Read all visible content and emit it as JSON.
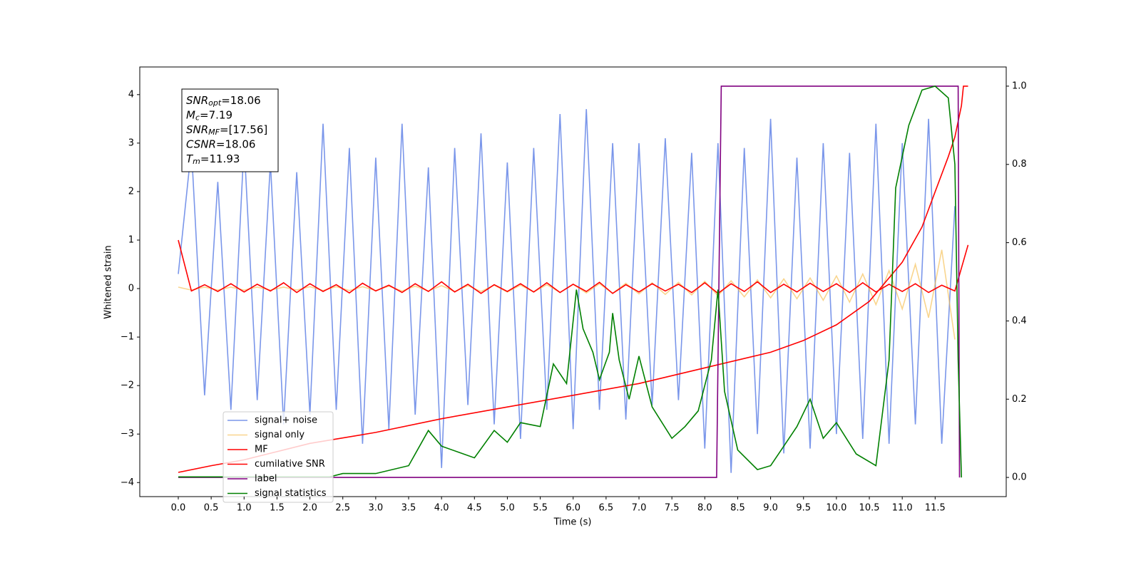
{
  "chart_data": {
    "type": "line",
    "xlabel": "Time (s)",
    "ylabel": "Whitened strain",
    "xlim": [
      -0.585,
      12.58
    ],
    "ylim": [
      -4.29,
      4.57
    ],
    "y2lim": [
      -0.049,
      1.049
    ],
    "xticks": [
      {
        "value": 0,
        "label": "0.0"
      },
      {
        "value": 0.5,
        "label": "0.5"
      },
      {
        "value": 1,
        "label": "1.0"
      },
      {
        "value": 1.5,
        "label": "1.5"
      },
      {
        "value": 2,
        "label": "2.0"
      },
      {
        "value": 2.5,
        "label": "2.5"
      },
      {
        "value": 3,
        "label": "3.0"
      },
      {
        "value": 3.5,
        "label": "3.5"
      },
      {
        "value": 4,
        "label": "4.0"
      },
      {
        "value": 4.5,
        "label": "4.5"
      },
      {
        "value": 5,
        "label": "5.0"
      },
      {
        "value": 5.5,
        "label": "5.5"
      },
      {
        "value": 6,
        "label": "6.0"
      },
      {
        "value": 6.5,
        "label": "6.5"
      },
      {
        "value": 7,
        "label": "7.0"
      },
      {
        "value": 7.5,
        "label": "7.5"
      },
      {
        "value": 8,
        "label": "8.0"
      },
      {
        "value": 8.5,
        "label": "8.5"
      },
      {
        "value": 9,
        "label": "9.0"
      },
      {
        "value": 9.5,
        "label": "9.5"
      },
      {
        "value": 10,
        "label": "10.0"
      },
      {
        "value": 10.5,
        "label": "10.5"
      },
      {
        "value": 11,
        "label": "11.0"
      },
      {
        "value": 11.5,
        "label": "11.5"
      }
    ],
    "yticks": [
      {
        "value": -4,
        "label": "−4"
      },
      {
        "value": -3,
        "label": "−3"
      },
      {
        "value": -2,
        "label": "−2"
      },
      {
        "value": -1,
        "label": "−1"
      },
      0,
      1,
      2,
      3,
      4
    ],
    "y2ticks": [
      {
        "value": 0,
        "label": "0.0"
      },
      {
        "value": 0.2,
        "label": "0.2"
      },
      {
        "value": 0.4,
        "label": "0.4"
      },
      {
        "value": 0.6,
        "label": "0.6"
      },
      {
        "value": 0.8,
        "label": "0.8"
      },
      {
        "value": 1,
        "label": "1.0"
      }
    ],
    "legend": "lower left",
    "annotation": [
      {
        "main": "SNR",
        "sub": "opt",
        "rest": "=18.06"
      },
      {
        "main": "M",
        "sub": "c",
        "rest": "=7.19"
      },
      {
        "main": "SNR",
        "sub": "MF",
        "rest": "=[17.56]"
      },
      {
        "main": "CSNR",
        "rest": "=18.06"
      },
      {
        "main": "T",
        "sub": "m",
        "rest": "=11.93"
      }
    ],
    "series": [
      {
        "name": "signal+ noise",
        "color": "#4169e1",
        "opacity": 0.7,
        "x": [
          0,
          0.2,
          0.4,
          0.6,
          0.8,
          1,
          1.2,
          1.4,
          1.6,
          1.8,
          2,
          2.2,
          2.4,
          2.6,
          2.8,
          3,
          3.2,
          3.4,
          3.6,
          3.8,
          4,
          4.2,
          4.4,
          4.6,
          4.8,
          5,
          5.2,
          5.4,
          5.6,
          5.8,
          6,
          6.2,
          6.4,
          6.6,
          6.8,
          7,
          7.2,
          7.4,
          7.6,
          7.8,
          8,
          8.2,
          8.4,
          8.6,
          8.8,
          9,
          9.2,
          9.4,
          9.6,
          9.8,
          10,
          10.2,
          10.4,
          10.6,
          10.8,
          11,
          11.2,
          11.4,
          11.6,
          11.8
        ],
        "values": [
          0.3,
          2.9,
          -2.2,
          2.2,
          -2.5,
          3.0,
          -2.3,
          2.6,
          -2.8,
          2.4,
          -2.6,
          3.4,
          -2.5,
          2.9,
          -3.2,
          2.7,
          -2.9,
          3.4,
          -2.6,
          2.5,
          -3.7,
          2.9,
          -2.4,
          3.2,
          -2.8,
          2.6,
          -3.1,
          2.9,
          -2.5,
          3.6,
          -2.9,
          3.7,
          -2.5,
          3.0,
          -2.7,
          3.0,
          -2.4,
          3.1,
          -2.3,
          2.8,
          -3.3,
          3.0,
          -3.8,
          2.9,
          -3.0,
          3.5,
          -3.4,
          2.7,
          -3.3,
          3.0,
          -3.0,
          2.8,
          -3.1,
          3.4,
          -3.2,
          3.0,
          -2.8,
          3.5,
          -3.2,
          1.7
        ]
      },
      {
        "name": "signal only",
        "color": "#f5b942",
        "opacity": 0.6,
        "x": [
          0,
          0.2,
          0.4,
          0.6,
          0.8,
          1,
          1.2,
          1.4,
          1.6,
          1.8,
          2,
          2.2,
          2.4,
          2.6,
          2.8,
          3,
          3.2,
          3.4,
          3.6,
          3.8,
          4,
          4.2,
          4.4,
          4.6,
          4.8,
          5,
          5.2,
          5.4,
          5.6,
          5.8,
          6,
          6.2,
          6.4,
          6.6,
          6.8,
          7,
          7.2,
          7.4,
          7.6,
          7.8,
          8,
          8.2,
          8.4,
          8.6,
          8.8,
          9,
          9.2,
          9.4,
          9.6,
          9.8,
          10,
          10.2,
          10.4,
          10.6,
          10.8,
          11,
          11.2,
          11.4,
          11.6,
          11.8
        ],
        "values": [
          0.03,
          -0.03,
          0.03,
          -0.03,
          0.03,
          -0.03,
          0.03,
          -0.03,
          0.03,
          -0.03,
          0.04,
          -0.04,
          0.04,
          -0.04,
          0.04,
          -0.04,
          0.05,
          -0.05,
          0.05,
          -0.05,
          0.06,
          -0.06,
          0.06,
          -0.06,
          0.07,
          -0.07,
          0.07,
          -0.07,
          0.08,
          -0.08,
          0.09,
          -0.09,
          0.1,
          -0.1,
          0.11,
          -0.11,
          0.12,
          -0.12,
          0.13,
          -0.13,
          0.15,
          -0.15,
          0.16,
          -0.17,
          0.18,
          -0.19,
          0.2,
          -0.21,
          0.22,
          -0.24,
          0.26,
          -0.28,
          0.3,
          -0.33,
          0.37,
          -0.42,
          0.5,
          -0.6,
          0.8,
          -1.05
        ]
      },
      {
        "name": "MF",
        "color": "#ff0000",
        "opacity": 1,
        "x": [
          0,
          0.2,
          0.4,
          0.6,
          0.8,
          1,
          1.2,
          1.4,
          1.6,
          1.8,
          2,
          2.2,
          2.4,
          2.6,
          2.8,
          3,
          3.2,
          3.4,
          3.6,
          3.8,
          4,
          4.2,
          4.4,
          4.6,
          4.8,
          5,
          5.2,
          5.4,
          5.6,
          5.8,
          6,
          6.2,
          6.4,
          6.6,
          6.8,
          7,
          7.2,
          7.4,
          7.6,
          7.8,
          8,
          8.2,
          8.4,
          8.6,
          8.8,
          9,
          9.2,
          9.4,
          9.6,
          9.8,
          10,
          10.2,
          10.4,
          10.6,
          10.8,
          11,
          11.2,
          11.4,
          11.6,
          11.8,
          12
        ],
        "values": [
          1.0,
          -0.05,
          0.08,
          -0.06,
          0.1,
          -0.07,
          0.09,
          -0.05,
          0.12,
          -0.08,
          0.1,
          -0.06,
          0.08,
          -0.09,
          0.11,
          -0.05,
          0.07,
          -0.08,
          0.1,
          -0.06,
          0.14,
          -0.07,
          0.09,
          -0.1,
          0.08,
          -0.06,
          0.1,
          -0.07,
          0.12,
          -0.08,
          0.09,
          -0.06,
          0.13,
          -0.1,
          0.08,
          -0.07,
          0.1,
          -0.05,
          0.09,
          -0.08,
          0.12,
          -0.1,
          0.1,
          -0.06,
          0.14,
          -0.08,
          0.09,
          -0.07,
          0.11,
          -0.06,
          0.1,
          -0.08,
          0.12,
          -0.07,
          0.09,
          -0.06,
          0.1,
          -0.08,
          0.07,
          -0.05,
          0.9
        ]
      },
      {
        "name": "cumilative SNR",
        "color": "#ff0000",
        "opacity": 1,
        "axis": "y2",
        "x": [
          0,
          0.5,
          1,
          2,
          3,
          4,
          5,
          6,
          7,
          8,
          8.5,
          9,
          9.5,
          10,
          10.5,
          11,
          11.3,
          11.5,
          11.7,
          11.8,
          11.9,
          11.93,
          12
        ],
        "values": [
          0.013,
          0.03,
          0.045,
          0.087,
          0.115,
          0.15,
          0.18,
          0.21,
          0.24,
          0.28,
          0.3,
          0.32,
          0.35,
          0.39,
          0.45,
          0.55,
          0.64,
          0.73,
          0.82,
          0.87,
          0.95,
          1.0,
          1.0
        ]
      },
      {
        "name": "label",
        "color": "#800080",
        "opacity": 1,
        "axis": "y2",
        "x": [
          0,
          8.18,
          8.25,
          11.85,
          11.87
        ],
        "values": [
          0,
          0,
          1,
          1,
          0
        ]
      },
      {
        "name": "signal statistics",
        "color": "#008000",
        "opacity": 1,
        "axis": "y2",
        "x": [
          0,
          2.3,
          2.5,
          3.0,
          3.5,
          3.8,
          4.0,
          4.5,
          4.8,
          5.0,
          5.2,
          5.5,
          5.7,
          5.9,
          6.05,
          6.15,
          6.3,
          6.4,
          6.55,
          6.6,
          6.7,
          6.85,
          7.0,
          7.2,
          7.5,
          7.7,
          7.9,
          8.1,
          8.2,
          8.3,
          8.5,
          8.8,
          9.0,
          9.2,
          9.4,
          9.6,
          9.8,
          10.0,
          10.3,
          10.6,
          10.8,
          10.9,
          11.1,
          11.3,
          11.5,
          11.7,
          11.8,
          11.85,
          11.9
        ],
        "values": [
          0.0015,
          0.0015,
          0.01,
          0.01,
          0.03,
          0.12,
          0.08,
          0.05,
          0.12,
          0.09,
          0.14,
          0.13,
          0.29,
          0.24,
          0.48,
          0.38,
          0.32,
          0.25,
          0.32,
          0.42,
          0.3,
          0.2,
          0.31,
          0.18,
          0.1,
          0.13,
          0.17,
          0.3,
          0.48,
          0.22,
          0.07,
          0.02,
          0.03,
          0.08,
          0.13,
          0.2,
          0.1,
          0.14,
          0.06,
          0.03,
          0.3,
          0.74,
          0.9,
          0.99,
          1.0,
          0.97,
          0.8,
          0.3,
          0.0
        ]
      }
    ]
  }
}
